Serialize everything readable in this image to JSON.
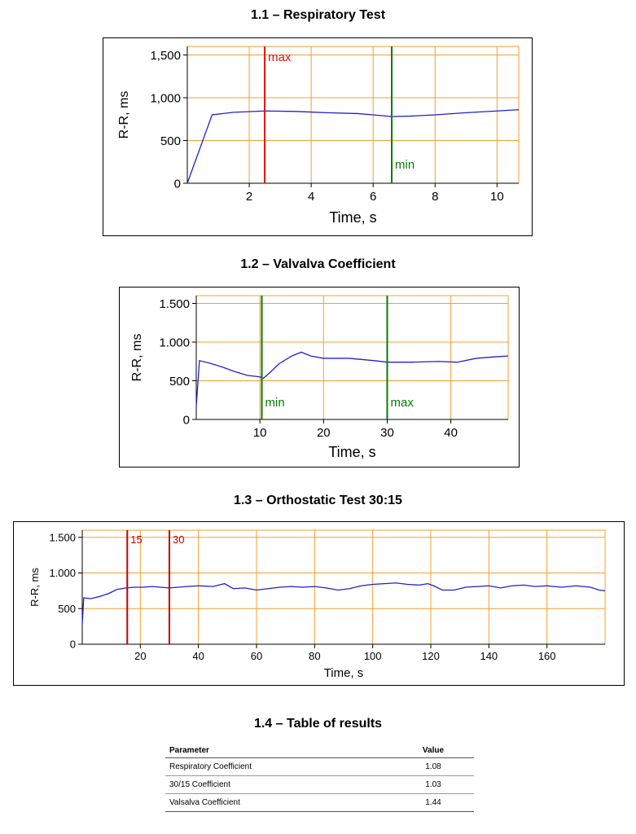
{
  "colors": {
    "grid": "#f0a030",
    "line": "#2020d0",
    "red": "#e01010",
    "green": "#0a7a0a",
    "darkred": "#c00000"
  },
  "chart_data": [
    {
      "type": "line",
      "title": "1.1 – Respiratory Test",
      "xlabel": "Time, s",
      "ylabel": "R-R, ms",
      "xlim": [
        0,
        10.7
      ],
      "ylim": [
        0,
        1600
      ],
      "xticks": [
        2,
        4,
        6,
        8,
        10
      ],
      "xtick_labels": [
        "2",
        "4",
        "6",
        "8",
        "10"
      ],
      "xgrid": [
        2,
        4,
        6,
        8,
        10
      ],
      "yticks": [
        0,
        500,
        1000,
        1500
      ],
      "ytick_labels": [
        "0",
        "500",
        "1,000",
        "1,500"
      ],
      "ygrid": [
        500,
        1000,
        1500
      ],
      "grid": true,
      "series": [
        {
          "x": [
            0,
            0.8,
            1.5,
            2.5,
            3.5,
            4.5,
            5.5,
            6.0,
            6.6,
            7.2,
            8.0,
            9.0,
            10.0,
            10.7
          ],
          "y": [
            0,
            800,
            830,
            845,
            840,
            825,
            815,
            800,
            780,
            785,
            800,
            825,
            845,
            860
          ]
        }
      ],
      "markers": [
        {
          "x": 2.5,
          "label": "max",
          "color": "#e01010"
        },
        {
          "x": 6.6,
          "label": "min",
          "color": "#0a7a0a"
        }
      ]
    },
    {
      "type": "line",
      "title": "1.2 – Valvalva Coefficient",
      "xlabel": "Time, s",
      "ylabel": "R-R, ms",
      "xlim": [
        0,
        49
      ],
      "ylim": [
        0,
        1600
      ],
      "xticks": [
        10,
        20,
        30,
        40
      ],
      "xtick_labels": [
        "10",
        "20",
        "30",
        "40"
      ],
      "xgrid": [
        10,
        20,
        30,
        40
      ],
      "yticks": [
        0,
        500,
        1000,
        1500
      ],
      "ytick_labels": [
        "0",
        "500",
        "1.000",
        "1.500"
      ],
      "ygrid": [
        500,
        1000,
        1500
      ],
      "grid": true,
      "series": [
        {
          "x": [
            0,
            0.5,
            2,
            4,
            6,
            8,
            10,
            10.5,
            11.5,
            13,
            15,
            16.5,
            18,
            20,
            24,
            28,
            30,
            34,
            38,
            41,
            44,
            47,
            49
          ],
          "y": [
            170,
            760,
            730,
            680,
            620,
            570,
            550,
            530,
            600,
            720,
            820,
            870,
            820,
            790,
            790,
            760,
            740,
            740,
            750,
            740,
            790,
            810,
            820
          ]
        }
      ],
      "markers": [
        {
          "x": 10.3,
          "label": "min",
          "color": "#0a7a0a"
        },
        {
          "x": 30,
          "label": "max",
          "color": "#0a7a0a"
        }
      ]
    },
    {
      "type": "line",
      "title": "1.3 – Orthostatic Test 30:15",
      "xlabel": "Time, s",
      "ylabel": "R-R, ms",
      "xlim": [
        0,
        180
      ],
      "ylim": [
        0,
        1600
      ],
      "xticks": [
        20,
        40,
        60,
        80,
        100,
        120,
        140,
        160
      ],
      "xtick_labels": [
        "20",
        "40",
        "60",
        "80",
        "100",
        "120",
        "140",
        "160"
      ],
      "xgrid": [
        20,
        40,
        60,
        80,
        100,
        120,
        140,
        160
      ],
      "yticks": [
        0,
        500,
        1000,
        1500
      ],
      "ytick_labels": [
        "0",
        "500",
        "1.000",
        "1.500"
      ],
      "ygrid": [
        500,
        1000,
        1500
      ],
      "grid": true,
      "series": [
        {
          "x": [
            0,
            0.5,
            3,
            6,
            9,
            12,
            15,
            18,
            21,
            24,
            27,
            30,
            33,
            36,
            40,
            45,
            49,
            52,
            56,
            60,
            64,
            68,
            72,
            76,
            80,
            84,
            88,
            92,
            96,
            100,
            104,
            108,
            112,
            116,
            119,
            121,
            124,
            128,
            132,
            136,
            140,
            144,
            148,
            152,
            156,
            160,
            165,
            170,
            175,
            178,
            180
          ],
          "y": [
            280,
            650,
            640,
            670,
            710,
            770,
            790,
            800,
            800,
            810,
            800,
            790,
            800,
            810,
            820,
            810,
            850,
            780,
            790,
            760,
            780,
            800,
            810,
            800,
            810,
            790,
            760,
            780,
            820,
            840,
            850,
            860,
            840,
            830,
            850,
            820,
            760,
            760,
            800,
            810,
            820,
            790,
            820,
            830,
            810,
            820,
            800,
            820,
            800,
            760,
            750
          ]
        }
      ],
      "markers": [
        {
          "x": 15.5,
          "label": "15",
          "color": "#c00000"
        },
        {
          "x": 30,
          "label": "30",
          "color": "#c00000"
        }
      ]
    }
  ],
  "table": {
    "title": "1.4 – Table of results",
    "headers": {
      "parameter": "Parameter",
      "value": "Value"
    },
    "rows": [
      {
        "parameter": "Respiratory Coefficient",
        "value": "1.08"
      },
      {
        "parameter": "30/15 Coefficient",
        "value": "1.03"
      },
      {
        "parameter": "Valsalva Coefficient",
        "value": "1.44"
      }
    ]
  }
}
